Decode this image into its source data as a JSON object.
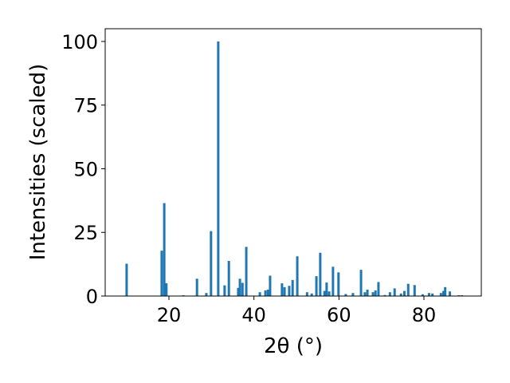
{
  "chart_data": {
    "type": "bar",
    "xlabel": "2θ (°)",
    "ylabel": "Intensities (scaled)",
    "x": [
      10.05,
      18.3,
      18.9,
      19.4,
      23.4,
      26.6,
      28.8,
      29.9,
      31.6,
      33.1,
      34.1,
      36.3,
      36.7,
      37.3,
      38.2,
      41.4,
      42.7,
      43.3,
      43.8,
      46.6,
      47.2,
      48.3,
      49.1,
      50.2,
      52.5,
      53.6,
      54.7,
      55.6,
      56.6,
      57.1,
      57.7,
      58.6,
      59.9,
      61.6,
      63.3,
      65.2,
      66.1,
      66.7,
      68.0,
      68.6,
      69.3,
      70.8,
      72.0,
      73.1,
      74.6,
      75.4,
      76.3,
      77.8,
      79.7,
      81.2,
      82.0,
      84.0,
      84.6,
      85.0,
      86.1,
      88.2,
      88.9
    ],
    "values": [
      12.7,
      17.8,
      36.5,
      5,
      0.3,
      6.8,
      1.2,
      25.5,
      100,
      4.2,
      13.8,
      3.2,
      6.8,
      5.2,
      19.3,
      1.5,
      2.2,
      2.5,
      8,
      5,
      3.5,
      4,
      6.3,
      15.6,
      1.5,
      1,
      7.8,
      17,
      2,
      5.3,
      1.8,
      11.5,
      9.3,
      0.8,
      1.2,
      10.3,
      1.5,
      2.5,
      1.5,
      2.2,
      5.5,
      0.4,
      1.5,
      3,
      1,
      2,
      4.8,
      4.3,
      0.7,
      1.2,
      1,
      1.2,
      2,
      3.5,
      1.8,
      0.3,
      0.3
    ],
    "color": "#1f77b4",
    "xlim": [
      5,
      93.5
    ],
    "xticks": [
      20,
      40,
      60,
      80
    ],
    "ylim": [
      0,
      105
    ],
    "yticks": [
      0,
      25,
      50,
      75,
      100
    ]
  }
}
